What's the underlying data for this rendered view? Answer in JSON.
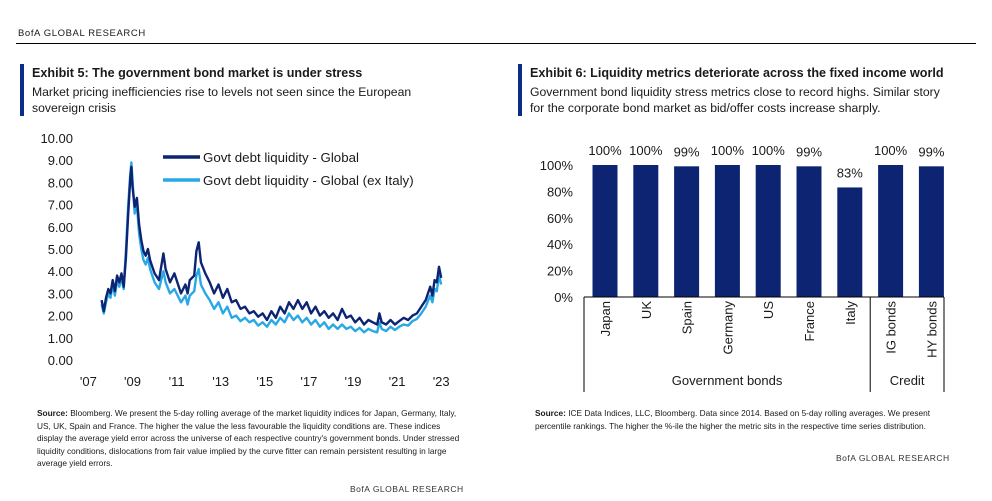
{
  "header": {
    "brand": "BofA GLOBAL RESEARCH"
  },
  "left": {
    "title": "Exhibit 5: The government bond market is under stress",
    "subtitle_line1": "Market pricing inefficiencies rise to levels not seen since the European",
    "subtitle_line2": "sovereign crisis",
    "source_label": "Source:",
    "source_text": "Bloomberg. We present the 5-day rolling average of the market liquidity indices for Japan, Germany, Italy, US, UK, Spain and France. The higher the value the less favourable the liquidity conditions are. These indices display the average yield error across the universe of each respective country's government bonds. Under stressed liquidity conditions, dislocations from fair value implied by the curve fitter can remain persistent resulting in large average yield errors.",
    "brand": "BofA GLOBAL RESEARCH"
  },
  "right": {
    "title": "Exhibit 6: Liquidity metrics deteriorate across the fixed income world",
    "subtitle_line1": "Government bond liquidity stress metrics close to record highs. Similar story",
    "subtitle_line2": "for the corporate bond market as bid/offer costs increase sharply.",
    "source_label": "Source:",
    "source_text": "ICE Data Indices, LLC, Bloomberg. Data since 2014. Based on 5-day rolling averages. We present percentile rankings. The higher the %-ile the higher the metric sits in the respective time series distribution.",
    "brand": "BofA GLOBAL RESEARCH"
  },
  "chart_data": [
    {
      "type": "line",
      "ylim": [
        0,
        10
      ],
      "y_ticks": [
        "0.00",
        "1.00",
        "2.00",
        "3.00",
        "4.00",
        "5.00",
        "6.00",
        "7.00",
        "8.00",
        "9.00",
        "10.00"
      ],
      "x_ticks": [
        {
          "label": "'07",
          "x": 2007
        },
        {
          "label": "'09",
          "x": 2009
        },
        {
          "label": "'11",
          "x": 2011
        },
        {
          "label": "'13",
          "x": 2013
        },
        {
          "label": "'15",
          "x": 2015
        },
        {
          "label": "'17",
          "x": 2017
        },
        {
          "label": "'19",
          "x": 2019
        },
        {
          "label": "'21",
          "x": 2021
        },
        {
          "label": "'23",
          "x": 2023
        }
      ],
      "xlim": [
        2006.8,
        2023.4
      ],
      "legend_position": "top-center",
      "series": [
        {
          "name": "Govt debt liquidity - Global",
          "color": "#0c2472",
          "points": [
            [
              2007.6,
              2.7
            ],
            [
              2007.7,
              2.2
            ],
            [
              2007.8,
              2.8
            ],
            [
              2007.9,
              3.2
            ],
            [
              2008.0,
              3.0
            ],
            [
              2008.1,
              3.6
            ],
            [
              2008.2,
              3.1
            ],
            [
              2008.3,
              3.8
            ],
            [
              2008.4,
              3.5
            ],
            [
              2008.5,
              3.9
            ],
            [
              2008.6,
              3.3
            ],
            [
              2008.7,
              4.6
            ],
            [
              2008.8,
              6.5
            ],
            [
              2008.9,
              8.2
            ],
            [
              2008.95,
              8.7
            ],
            [
              2009.0,
              7.8
            ],
            [
              2009.1,
              6.9
            ],
            [
              2009.2,
              7.3
            ],
            [
              2009.3,
              6.1
            ],
            [
              2009.4,
              5.4
            ],
            [
              2009.5,
              4.9
            ],
            [
              2009.6,
              4.7
            ],
            [
              2009.7,
              5.0
            ],
            [
              2009.8,
              4.5
            ],
            [
              2009.9,
              4.2
            ],
            [
              2010.0,
              3.9
            ],
            [
              2010.2,
              3.6
            ],
            [
              2010.4,
              4.8
            ],
            [
              2010.5,
              4.1
            ],
            [
              2010.7,
              3.5
            ],
            [
              2010.9,
              3.9
            ],
            [
              2011.0,
              3.6
            ],
            [
              2011.2,
              3.0
            ],
            [
              2011.4,
              3.4
            ],
            [
              2011.5,
              3.0
            ],
            [
              2011.6,
              3.6
            ],
            [
              2011.8,
              3.8
            ],
            [
              2011.9,
              4.9
            ],
            [
              2012.0,
              5.3
            ],
            [
              2012.1,
              4.4
            ],
            [
              2012.3,
              3.9
            ],
            [
              2012.5,
              3.5
            ],
            [
              2012.7,
              3.0
            ],
            [
              2012.9,
              3.4
            ],
            [
              2013.1,
              2.8
            ],
            [
              2013.3,
              3.2
            ],
            [
              2013.5,
              2.6
            ],
            [
              2013.7,
              2.7
            ],
            [
              2013.9,
              2.3
            ],
            [
              2014.1,
              2.4
            ],
            [
              2014.3,
              2.1
            ],
            [
              2014.5,
              2.2
            ],
            [
              2014.7,
              1.95
            ],
            [
              2014.9,
              2.1
            ],
            [
              2015.1,
              1.8
            ],
            [
              2015.3,
              2.2
            ],
            [
              2015.5,
              1.9
            ],
            [
              2015.7,
              2.4
            ],
            [
              2015.9,
              2.1
            ],
            [
              2016.1,
              2.6
            ],
            [
              2016.3,
              2.3
            ],
            [
              2016.5,
              2.7
            ],
            [
              2016.7,
              2.3
            ],
            [
              2016.9,
              2.6
            ],
            [
              2017.1,
              2.1
            ],
            [
              2017.3,
              2.4
            ],
            [
              2017.5,
              2.0
            ],
            [
              2017.7,
              2.2
            ],
            [
              2017.9,
              1.9
            ],
            [
              2018.1,
              2.1
            ],
            [
              2018.3,
              1.8
            ],
            [
              2018.5,
              2.3
            ],
            [
              2018.7,
              1.9
            ],
            [
              2018.9,
              2.0
            ],
            [
              2019.1,
              1.7
            ],
            [
              2019.3,
              1.9
            ],
            [
              2019.5,
              1.6
            ],
            [
              2019.7,
              1.8
            ],
            [
              2019.9,
              1.7
            ],
            [
              2020.1,
              1.6
            ],
            [
              2020.2,
              2.1
            ],
            [
              2020.3,
              1.7
            ],
            [
              2020.5,
              1.6
            ],
            [
              2020.7,
              1.8
            ],
            [
              2020.9,
              1.6
            ],
            [
              2021.1,
              1.75
            ],
            [
              2021.3,
              1.9
            ],
            [
              2021.5,
              1.8
            ],
            [
              2021.7,
              2.0
            ],
            [
              2021.9,
              2.1
            ],
            [
              2022.1,
              2.4
            ],
            [
              2022.3,
              2.7
            ],
            [
              2022.5,
              3.3
            ],
            [
              2022.6,
              2.9
            ],
            [
              2022.7,
              3.6
            ],
            [
              2022.8,
              3.5
            ],
            [
              2022.9,
              4.2
            ],
            [
              2023.0,
              3.7
            ]
          ]
        },
        {
          "name": "Govt debt liquidity - Global (ex Italy)",
          "color": "#29a8e6",
          "points": [
            [
              2007.6,
              2.5
            ],
            [
              2007.7,
              2.1
            ],
            [
              2007.8,
              2.6
            ],
            [
              2007.9,
              3.0
            ],
            [
              2008.0,
              2.8
            ],
            [
              2008.1,
              3.4
            ],
            [
              2008.2,
              2.9
            ],
            [
              2008.3,
              3.6
            ],
            [
              2008.4,
              3.3
            ],
            [
              2008.5,
              3.7
            ],
            [
              2008.6,
              3.2
            ],
            [
              2008.7,
              4.9
            ],
            [
              2008.8,
              6.9
            ],
            [
              2008.9,
              8.4
            ],
            [
              2008.95,
              8.9
            ],
            [
              2009.0,
              8.1
            ],
            [
              2009.1,
              6.6
            ],
            [
              2009.2,
              7.0
            ],
            [
              2009.3,
              5.7
            ],
            [
              2009.4,
              5.0
            ],
            [
              2009.5,
              4.5
            ],
            [
              2009.6,
              4.3
            ],
            [
              2009.7,
              4.6
            ],
            [
              2009.8,
              4.1
            ],
            [
              2009.9,
              3.8
            ],
            [
              2010.0,
              3.5
            ],
            [
              2010.2,
              3.2
            ],
            [
              2010.4,
              4.0
            ],
            [
              2010.5,
              3.5
            ],
            [
              2010.7,
              3.0
            ],
            [
              2010.9,
              3.2
            ],
            [
              2011.0,
              3.0
            ],
            [
              2011.2,
              2.6
            ],
            [
              2011.4,
              2.9
            ],
            [
              2011.5,
              2.5
            ],
            [
              2011.6,
              2.9
            ],
            [
              2011.8,
              3.1
            ],
            [
              2011.9,
              3.8
            ],
            [
              2012.0,
              4.1
            ],
            [
              2012.1,
              3.4
            ],
            [
              2012.3,
              3.0
            ],
            [
              2012.5,
              2.7
            ],
            [
              2012.7,
              2.3
            ],
            [
              2012.9,
              2.6
            ],
            [
              2013.1,
              2.1
            ],
            [
              2013.3,
              2.4
            ],
            [
              2013.5,
              1.9
            ],
            [
              2013.7,
              2.0
            ],
            [
              2013.9,
              1.75
            ],
            [
              2014.1,
              1.9
            ],
            [
              2014.3,
              1.7
            ],
            [
              2014.5,
              1.8
            ],
            [
              2014.7,
              1.55
            ],
            [
              2014.9,
              1.7
            ],
            [
              2015.1,
              1.5
            ],
            [
              2015.3,
              1.8
            ],
            [
              2015.5,
              1.6
            ],
            [
              2015.7,
              1.9
            ],
            [
              2015.9,
              1.7
            ],
            [
              2016.1,
              2.1
            ],
            [
              2016.3,
              1.8
            ],
            [
              2016.5,
              2.0
            ],
            [
              2016.7,
              1.7
            ],
            [
              2016.9,
              1.9
            ],
            [
              2017.1,
              1.6
            ],
            [
              2017.3,
              1.8
            ],
            [
              2017.5,
              1.5
            ],
            [
              2017.7,
              1.7
            ],
            [
              2017.9,
              1.4
            ],
            [
              2018.1,
              1.6
            ],
            [
              2018.3,
              1.4
            ],
            [
              2018.5,
              1.6
            ],
            [
              2018.7,
              1.4
            ],
            [
              2018.9,
              1.5
            ],
            [
              2019.1,
              1.3
            ],
            [
              2019.3,
              1.45
            ],
            [
              2019.5,
              1.25
            ],
            [
              2019.7,
              1.4
            ],
            [
              2019.9,
              1.3
            ],
            [
              2020.1,
              1.25
            ],
            [
              2020.2,
              1.7
            ],
            [
              2020.3,
              1.4
            ],
            [
              2020.5,
              1.3
            ],
            [
              2020.7,
              1.5
            ],
            [
              2020.9,
              1.35
            ],
            [
              2021.1,
              1.5
            ],
            [
              2021.3,
              1.6
            ],
            [
              2021.5,
              1.55
            ],
            [
              2021.7,
              1.75
            ],
            [
              2021.9,
              1.85
            ],
            [
              2022.1,
              2.1
            ],
            [
              2022.3,
              2.4
            ],
            [
              2022.5,
              2.9
            ],
            [
              2022.6,
              2.6
            ],
            [
              2022.7,
              3.2
            ],
            [
              2022.8,
              3.1
            ],
            [
              2022.9,
              3.8
            ],
            [
              2023.0,
              3.4
            ]
          ]
        }
      ]
    },
    {
      "type": "bar",
      "ylim": [
        0,
        100
      ],
      "y_ticks": [
        "0%",
        "20%",
        "40%",
        "60%",
        "80%",
        "100%"
      ],
      "bar_color": "#0c2472",
      "categories": [
        "Japan",
        "UK",
        "Spain",
        "Germany",
        "US",
        "France",
        "Italy",
        "IG bonds",
        "HY bonds"
      ],
      "values": [
        100,
        100,
        99,
        100,
        100,
        99,
        83,
        100,
        99
      ],
      "value_labels": [
        "100%",
        "100%",
        "99%",
        "100%",
        "100%",
        "99%",
        "83%",
        "100%",
        "99%"
      ],
      "groups": [
        {
          "label": "Government bonds",
          "span": [
            0,
            6
          ]
        },
        {
          "label": "Credit",
          "span": [
            7,
            8
          ]
        }
      ]
    }
  ]
}
